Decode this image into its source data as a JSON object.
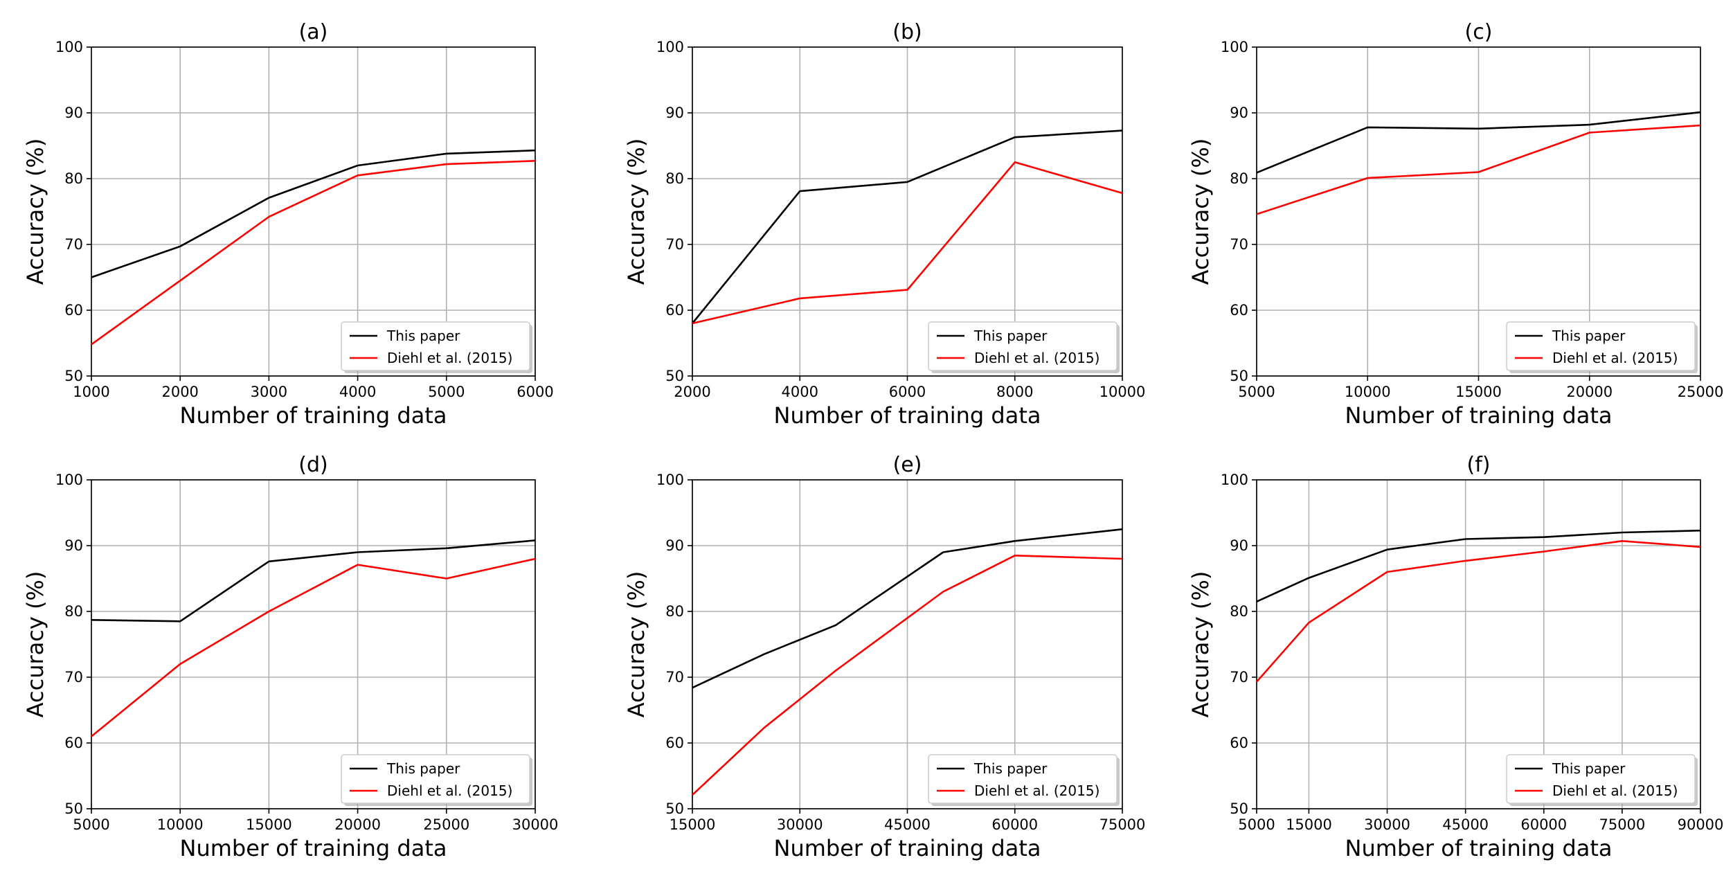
{
  "chart_data": [
    {
      "type": "line",
      "title": "(a)",
      "xlabel": "Number of training data",
      "ylabel": "Accuracy (%)",
      "xlim": [
        1000,
        6000
      ],
      "ylim": [
        50,
        100
      ],
      "xticks": [
        1000,
        2000,
        3000,
        4000,
        5000,
        6000
      ],
      "yticks": [
        50,
        60,
        70,
        80,
        90,
        100
      ],
      "grid": true,
      "legend_position": "lower-right",
      "series": [
        {
          "name": "This paper",
          "color": "#000000",
          "x": [
            1000,
            2000,
            3000,
            4000,
            5000,
            6000
          ],
          "y": [
            65.0,
            69.7,
            77.1,
            82.0,
            83.8,
            84.3
          ]
        },
        {
          "name": "Diehl et al. (2015)",
          "color": "#ff0000",
          "x": [
            1000,
            2000,
            3000,
            4000,
            5000,
            6000
          ],
          "y": [
            54.8,
            64.5,
            74.2,
            80.5,
            82.2,
            82.7
          ]
        }
      ]
    },
    {
      "type": "line",
      "title": "(b)",
      "xlabel": "Number of training data",
      "ylabel": "Accuracy (%)",
      "xlim": [
        2000,
        10000
      ],
      "ylim": [
        50,
        100
      ],
      "xticks": [
        2000,
        4000,
        6000,
        8000,
        10000
      ],
      "yticks": [
        50,
        60,
        70,
        80,
        90,
        100
      ],
      "grid": true,
      "legend_position": "lower-right",
      "series": [
        {
          "name": "This paper",
          "color": "#000000",
          "x": [
            2000,
            4000,
            6000,
            8000,
            10000
          ],
          "y": [
            58.0,
            78.1,
            79.5,
            86.3,
            87.3
          ]
        },
        {
          "name": "Diehl et al. (2015)",
          "color": "#ff0000",
          "x": [
            2000,
            4000,
            6000,
            8000,
            10000
          ],
          "y": [
            58.0,
            61.8,
            63.1,
            82.5,
            77.8
          ]
        }
      ]
    },
    {
      "type": "line",
      "title": "(c)",
      "xlabel": "Number of training data",
      "ylabel": "Accuracy (%)",
      "xlim": [
        5000,
        25000
      ],
      "ylim": [
        50,
        100
      ],
      "xticks": [
        5000,
        10000,
        15000,
        20000,
        25000
      ],
      "yticks": [
        50,
        60,
        70,
        80,
        90,
        100
      ],
      "grid": true,
      "legend_position": "lower-right",
      "series": [
        {
          "name": "This paper",
          "color": "#000000",
          "x": [
            5000,
            10000,
            15000,
            20000,
            25000
          ],
          "y": [
            80.9,
            87.8,
            87.6,
            88.2,
            90.1
          ]
        },
        {
          "name": "Diehl et al. (2015)",
          "color": "#ff0000",
          "x": [
            5000,
            10000,
            15000,
            20000,
            25000
          ],
          "y": [
            74.6,
            80.1,
            81.0,
            87.0,
            88.1
          ]
        }
      ]
    },
    {
      "type": "line",
      "title": "(d)",
      "xlabel": "Number of training data",
      "ylabel": "Accuracy (%)",
      "xlim": [
        5000,
        30000
      ],
      "ylim": [
        50,
        100
      ],
      "xticks": [
        5000,
        10000,
        15000,
        20000,
        25000,
        30000
      ],
      "yticks": [
        50,
        60,
        70,
        80,
        90,
        100
      ],
      "grid": true,
      "legend_position": "lower-right",
      "series": [
        {
          "name": "This paper",
          "color": "#000000",
          "x": [
            5000,
            10000,
            15000,
            20000,
            25000,
            30000
          ],
          "y": [
            78.7,
            78.5,
            87.6,
            89.0,
            89.6,
            90.8
          ]
        },
        {
          "name": "Diehl et al. (2015)",
          "color": "#ff0000",
          "x": [
            5000,
            10000,
            15000,
            20000,
            25000,
            30000
          ],
          "y": [
            61.0,
            72.0,
            80.0,
            87.1,
            85.0,
            88.0
          ]
        }
      ]
    },
    {
      "type": "line",
      "title": "(e)",
      "xlabel": "Number of training data",
      "ylabel": "Accuracy (%)",
      "xlim": [
        15000,
        75000
      ],
      "ylim": [
        50,
        100
      ],
      "xticks": [
        15000,
        30000,
        45000,
        60000,
        75000
      ],
      "yticks": [
        50,
        60,
        70,
        80,
        90,
        100
      ],
      "grid": true,
      "legend_position": "lower-right",
      "series": [
        {
          "name": "This paper",
          "color": "#000000",
          "x": [
            15000,
            25000,
            35000,
            50000,
            60000,
            75000
          ],
          "y": [
            68.4,
            73.5,
            77.9,
            89.0,
            90.7,
            92.5
          ]
        },
        {
          "name": "Diehl et al. (2015)",
          "color": "#ff0000",
          "x": [
            15000,
            25000,
            35000,
            50000,
            60000,
            75000
          ],
          "y": [
            52.1,
            62.3,
            71.0,
            83.0,
            88.5,
            88.0
          ]
        }
      ]
    },
    {
      "type": "line",
      "title": "(f)",
      "xlabel": "Number of training data",
      "ylabel": "Accuracy (%)",
      "xlim": [
        5000,
        90000
      ],
      "ylim": [
        50,
        100
      ],
      "xticks": [
        5000,
        15000,
        30000,
        45000,
        60000,
        75000,
        90000
      ],
      "yticks": [
        50,
        60,
        70,
        80,
        90,
        100
      ],
      "grid": true,
      "legend_position": "lower-right",
      "series": [
        {
          "name": "This paper",
          "color": "#000000",
          "x": [
            5000,
            15000,
            30000,
            45000,
            60000,
            75000,
            90000
          ],
          "y": [
            81.5,
            85.1,
            89.4,
            91.0,
            91.3,
            92.0,
            92.3
          ]
        },
        {
          "name": "Diehl et al. (2015)",
          "color": "#ff0000",
          "x": [
            5000,
            15000,
            30000,
            45000,
            60000,
            75000,
            90000
          ],
          "y": [
            69.3,
            78.3,
            86.0,
            87.7,
            89.1,
            90.7,
            89.8
          ]
        }
      ]
    }
  ]
}
